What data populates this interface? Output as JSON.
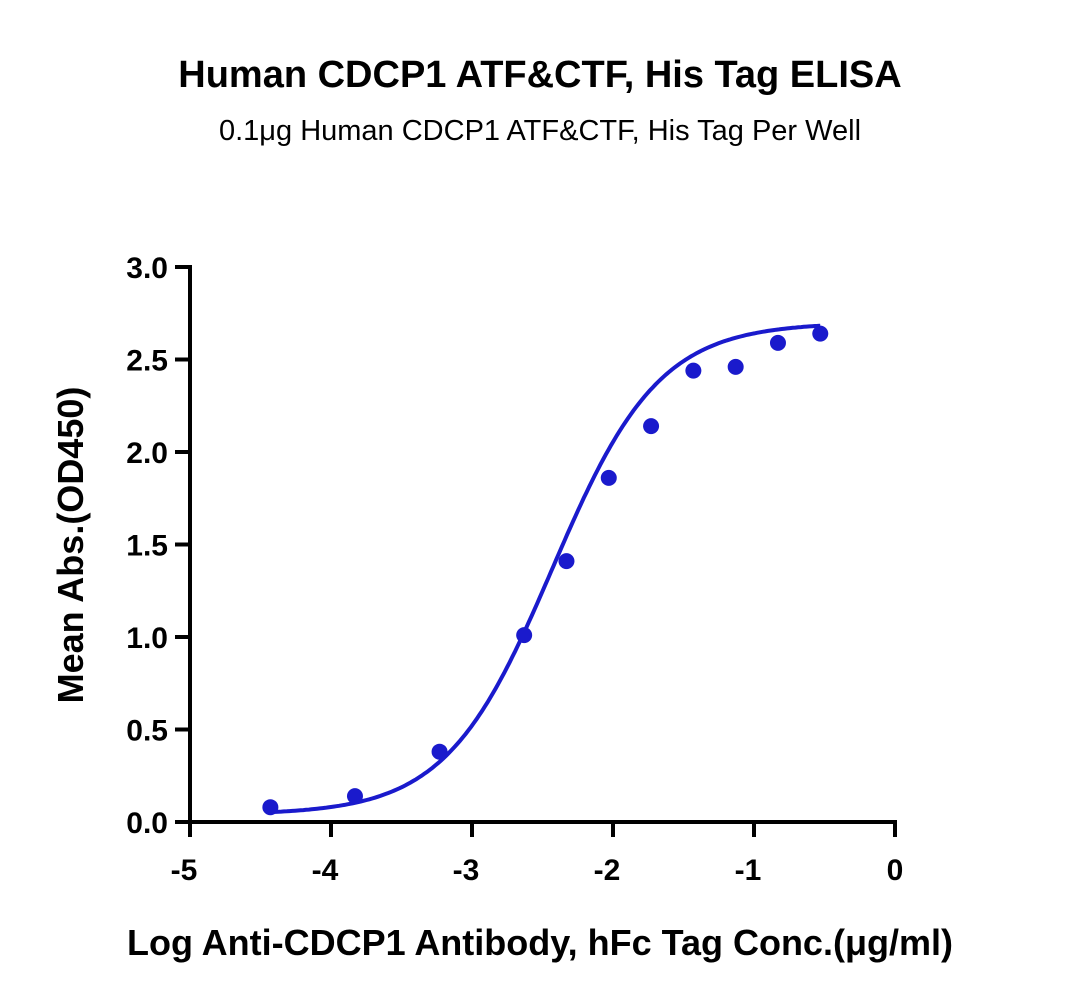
{
  "chart_data": {
    "type": "scatter",
    "title": "Human CDCP1 ATF&CTF, His Tag ELISA",
    "subtitle": "0.1μg Human CDCP1 ATF&CTF, His Tag Per Well",
    "xlabel": "Log Anti-CDCP1 Antibody, hFc Tag Conc.(μg/ml)",
    "ylabel": "Mean Abs.(OD450)",
    "xlim": [
      -5,
      0
    ],
    "ylim": [
      0,
      3.0
    ],
    "x_ticks": [
      "-5",
      "-4",
      "-3",
      "-2",
      "-1",
      "0"
    ],
    "y_ticks": [
      "0.0",
      "0.5",
      "1.0",
      "1.5",
      "2.0",
      "2.5",
      "3.0"
    ],
    "grid": false,
    "color": "#1a1acc",
    "series": [
      {
        "x": [
          -4.43,
          -3.83,
          -3.23,
          -2.63,
          -2.33,
          -2.03,
          -1.73,
          -1.43,
          -1.13,
          -0.83,
          -0.53
        ],
        "y": [
          0.08,
          0.14,
          0.38,
          1.01,
          1.41,
          1.86,
          2.14,
          2.44,
          2.46,
          2.59,
          2.64
        ]
      }
    ],
    "fit_curve": {
      "model": "4PL",
      "bottom": 0.04,
      "top": 2.7,
      "log_ec50": -2.43,
      "hill_slope": 1.15
    }
  }
}
